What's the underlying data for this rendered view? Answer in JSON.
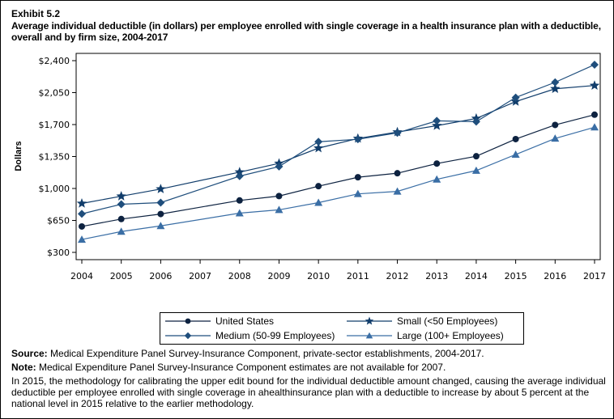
{
  "exhibit": "Exhibit 5.2",
  "title": "Average individual deductible (in dollars) per employee enrolled with single coverage in a health insurance plan with a deductible, overall and by firm size, 2004-2017",
  "chart_data": {
    "type": "line",
    "title": "Average individual deductible (in dollars) per employee enrolled with single coverage in a health insurance plan with a deductible, overall and by firm size, 2004-2017",
    "xlabel": "",
    "ylabel": "Dollars",
    "x": [
      2004,
      2005,
      2006,
      2008,
      2009,
      2010,
      2011,
      2012,
      2013,
      2014,
      2015,
      2016,
      2017
    ],
    "x_ticks": [
      "2004",
      "2005",
      "2006",
      "2007",
      "2008",
      "2009",
      "2010",
      "2011",
      "2012",
      "2013",
      "2014",
      "2015",
      "2016",
      "2017"
    ],
    "xlim": [
      2004,
      2017
    ],
    "ylim": [
      300,
      2400
    ],
    "y_ticks": [
      "$300",
      "$650",
      "$1,000",
      "$1,350",
      "$1,700",
      "$2,050",
      "$2,400"
    ],
    "y_tick_values": [
      300,
      650,
      1000,
      1350,
      1700,
      2050,
      2400
    ],
    "grid": false,
    "legend_placement": "bottom",
    "series": [
      {
        "name": "United States",
        "marker": "circle",
        "color": "#0d2240",
        "values": [
          584,
          665,
          720,
          869,
          917,
          1025,
          1123,
          1167,
          1273,
          1353,
          1541,
          1696,
          1808
        ]
      },
      {
        "name": "Small (<50 Employees)",
        "marker": "star",
        "color": "#113d6b",
        "values": [
          836,
          915,
          994,
          1179,
          1275,
          1442,
          1548,
          1618,
          1688,
          1767,
          1952,
          2092,
          2128
        ]
      },
      {
        "name": "Medium (50-99 Employees)",
        "marker": "diamond",
        "color": "#1f4e7c",
        "values": [
          722,
          827,
          845,
          1135,
          1240,
          1512,
          1539,
          1609,
          1741,
          1732,
          1996,
          2163,
          2356
        ]
      },
      {
        "name": "Large (100+ Employees)",
        "marker": "triangle",
        "color": "#3a6ea5",
        "values": [
          441,
          528,
          590,
          730,
          766,
          845,
          941,
          968,
          1100,
          1196,
          1372,
          1548,
          1671
        ]
      }
    ]
  },
  "notes": {
    "source_label": "Source:",
    "source_text": " Medical Expenditure Panel Survey-Insurance Component, private-sector establishments, 2004-2017.",
    "note_label": "Note:",
    "note_text": " Medical Expenditure Panel Survey-Insurance Component estimates are not available for 2007.",
    "methodology": "In 2015, the methodology for calibrating the upper edit bound for the individual deductible amount changed, causing the average individual deductible per employee enrolled with single coverage in ahealthinsurance plan with a deductible to increase by about 5 percent at the national level in 2015 relative to the earlier methodology."
  }
}
